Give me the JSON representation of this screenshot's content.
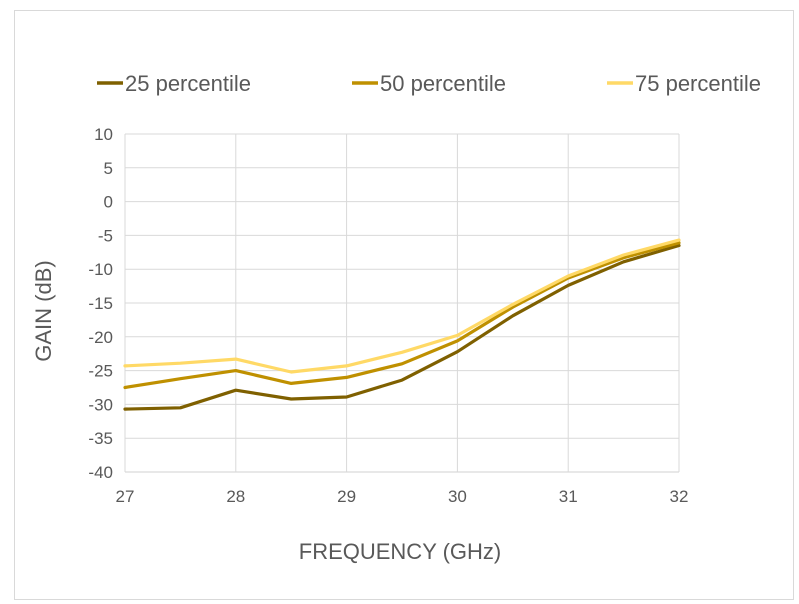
{
  "chart_data": {
    "type": "line",
    "title": "",
    "xlabel": "FREQUENCY (GHz)",
    "ylabel": "GAIN (dB)",
    "xlim": [
      27,
      32
    ],
    "ylim": [
      -40,
      10
    ],
    "x_ticks": [
      27,
      28,
      29,
      30,
      31,
      32
    ],
    "y_ticks": [
      10,
      5,
      0,
      -5,
      -10,
      -15,
      -20,
      -25,
      -30,
      -35,
      -40
    ],
    "x": [
      27,
      27.5,
      28,
      28.5,
      29,
      29.5,
      30,
      30.5,
      31,
      31.5,
      32
    ],
    "series": [
      {
        "name": "25 percentile",
        "color": "#7f6000",
        "values": [
          -30.7,
          -30.5,
          -27.9,
          -29.2,
          -28.9,
          -26.4,
          -22.2,
          -16.9,
          -12.4,
          -8.9,
          -6.5
        ]
      },
      {
        "name": "50 percentile",
        "color": "#bf9000",
        "values": [
          -27.5,
          -26.2,
          -25.0,
          -26.9,
          -26.0,
          -24.0,
          -20.6,
          -15.6,
          -11.3,
          -8.3,
          -6.1
        ]
      },
      {
        "name": "75 percentile",
        "color": "#ffd966",
        "values": [
          -24.3,
          -23.9,
          -23.3,
          -25.2,
          -24.3,
          -22.3,
          -19.8,
          -15.2,
          -11.0,
          -7.9,
          -5.7
        ]
      }
    ],
    "grid": true,
    "legend_position": "top"
  }
}
